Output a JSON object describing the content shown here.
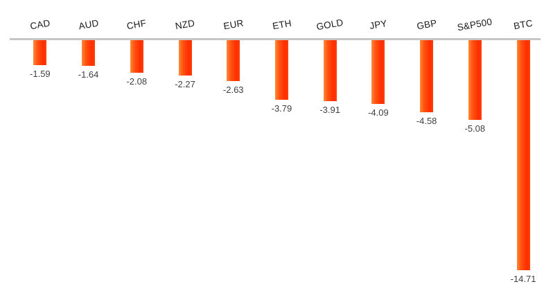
{
  "chart_data": {
    "type": "bar",
    "orientation": "vertical-negative",
    "title": "",
    "xlabel": "",
    "ylabel": "",
    "categories": [
      "CAD",
      "AUD",
      "CHF",
      "NZD",
      "EUR",
      "ETH",
      "GOLD",
      "JPY",
      "GBP",
      "S&P500",
      "BTC"
    ],
    "values": [
      -1.59,
      -1.64,
      -2.08,
      -2.27,
      -2.63,
      -3.79,
      -3.91,
      -4.09,
      -4.58,
      -5.08,
      -14.71
    ],
    "value_labels": [
      "-1.59",
      "-1.64",
      "-2.08",
      "-2.27",
      "-2.63",
      "-3.79",
      "-3.91",
      "-4.09",
      "-4.58",
      "-5.08",
      "-14.71"
    ],
    "ylim": [
      -16,
      0
    ],
    "grid": false,
    "legend": false,
    "category_label_rotation_deg": -10,
    "colors": {
      "bar_base": "#FF4500",
      "bar_gradient": [
        "#ff8a38",
        "#ff5512",
        "#ff2d00",
        "#ff3f06"
      ],
      "axis_line": "#c6c6c6",
      "category_label": "#1a1a1a",
      "value_label": "#404040",
      "background": "#ffffff"
    }
  }
}
